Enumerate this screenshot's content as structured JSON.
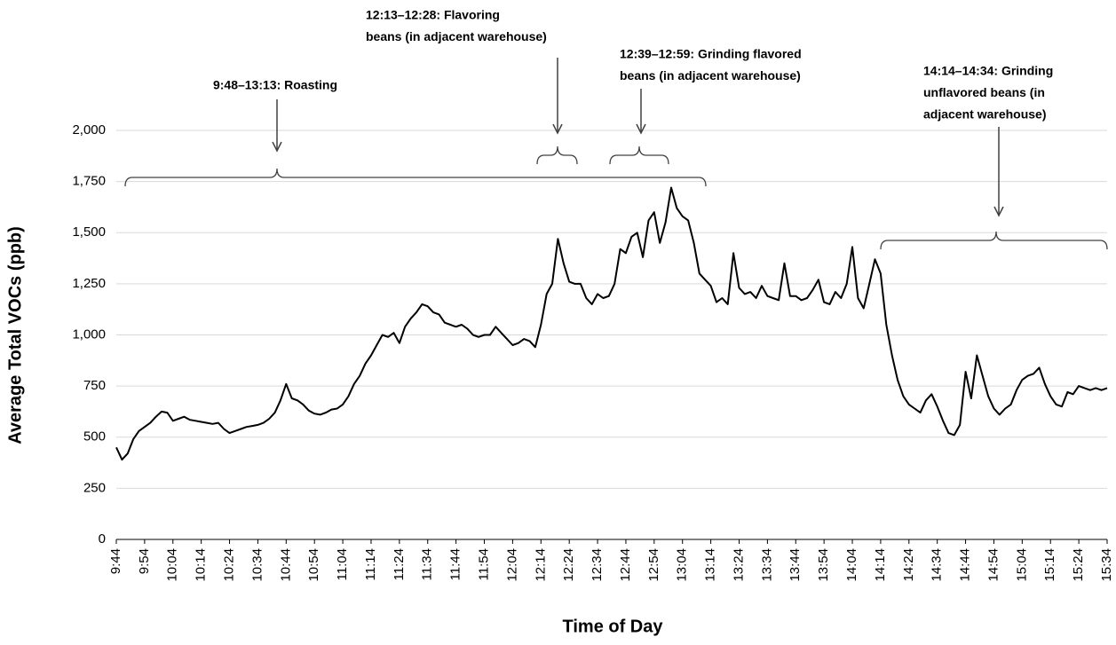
{
  "chart_data": {
    "type": "line",
    "y_label": "Average Total VOCs (ppb)",
    "x_label": "Time of Day",
    "annotations": [
      {
        "lines": [
          "9:48–13:13: Roasting"
        ]
      },
      {
        "lines": [
          "12:13–12:28:  Flavoring",
          "beans (in adjacent warehouse)"
        ]
      },
      {
        "lines": [
          "12:39–12:59:  Grinding flavored",
          "beans (in adjacent warehouse)"
        ]
      },
      {
        "lines": [
          "14:14–14:34:  Grinding",
          "unflavored beans (in",
          "adjacent warehouse)"
        ]
      }
    ],
    "color": "#000000",
    "grid": true,
    "ylim": [
      0,
      2000
    ],
    "yticks": [
      0,
      250,
      500,
      750,
      {
        "value": 1000,
        "label": "1,000"
      },
      {
        "value": 1250,
        "label": "1,250"
      },
      {
        "value": 1500,
        "label": "1,500"
      },
      {
        "value": 1750,
        "label": "1,750"
      },
      {
        "value": 2000,
        "label": "2,000"
      }
    ],
    "categories": [
      "9:44",
      null,
      null,
      null,
      null,
      "9:54",
      null,
      null,
      null,
      null,
      "10:04",
      null,
      null,
      null,
      null,
      "10:14",
      null,
      null,
      null,
      null,
      "10:24",
      null,
      null,
      null,
      null,
      "10:34",
      null,
      null,
      null,
      null,
      "10:44",
      null,
      null,
      null,
      null,
      "10:54",
      null,
      null,
      null,
      null,
      "11:04",
      null,
      null,
      null,
      null,
      "11:14",
      null,
      null,
      null,
      null,
      "11:24",
      null,
      null,
      null,
      null,
      "11:34",
      null,
      null,
      null,
      null,
      "11:44",
      null,
      null,
      null,
      null,
      "11:54",
      null,
      null,
      null,
      null,
      "12:04",
      null,
      null,
      null,
      null,
      "12:14",
      null,
      null,
      null,
      null,
      "12:24",
      null,
      null,
      null,
      null,
      "12:34",
      null,
      null,
      null,
      null,
      "12:44",
      null,
      null,
      null,
      null,
      "12:54",
      null,
      null,
      null,
      null,
      "13:04",
      null,
      null,
      null,
      null,
      "13:14",
      null,
      null,
      null,
      null,
      "13:24",
      null,
      null,
      null,
      null,
      "13:34",
      null,
      null,
      null,
      null,
      "13:44",
      null,
      null,
      null,
      null,
      "13:54",
      null,
      null,
      null,
      null,
      "14:04",
      null,
      null,
      null,
      null,
      "14:14",
      null,
      null,
      null,
      null,
      "14:24",
      null,
      null,
      null,
      null,
      "14:34",
      null,
      null,
      null,
      null,
      "14:44",
      null,
      null,
      null,
      null,
      "14:54",
      null,
      null,
      null,
      null,
      "15:04",
      null,
      null,
      null,
      null,
      "15:14",
      null,
      null,
      null,
      null,
      "15:24",
      null,
      null,
      null,
      null,
      "15:34"
    ],
    "values": [
      450,
      390,
      420,
      490,
      530,
      550,
      570,
      600,
      625,
      620,
      580,
      590,
      600,
      585,
      580,
      575,
      570,
      565,
      570,
      540,
      520,
      530,
      540,
      550,
      555,
      560,
      570,
      590,
      620,
      680,
      760,
      690,
      680,
      660,
      630,
      615,
      610,
      620,
      635,
      640,
      660,
      700,
      760,
      800,
      860,
      900,
      950,
      1000,
      990,
      1010,
      960,
      1040,
      1080,
      1110,
      1150,
      1140,
      1110,
      1100,
      1060,
      1050,
      1040,
      1050,
      1030,
      1000,
      990,
      1000,
      1000,
      1040,
      1010,
      980,
      950,
      960,
      980,
      970,
      940,
      1050,
      1200,
      1250,
      1470,
      1350,
      1260,
      1250,
      1250,
      1180,
      1150,
      1200,
      1180,
      1190,
      1250,
      1420,
      1400,
      1480,
      1500,
      1380,
      1560,
      1600,
      1450,
      1550,
      1720,
      1620,
      1580,
      1560,
      1450,
      1300,
      1270,
      1240,
      1160,
      1180,
      1150,
      1400,
      1230,
      1200,
      1210,
      1180,
      1240,
      1190,
      1180,
      1170,
      1350,
      1190,
      1190,
      1170,
      1180,
      1220,
      1270,
      1160,
      1150,
      1210,
      1180,
      1250,
      1430,
      1180,
      1130,
      1250,
      1370,
      1300,
      1050,
      900,
      780,
      700,
      660,
      640,
      620,
      680,
      710,
      650,
      580,
      520,
      510,
      560,
      820,
      690,
      900,
      800,
      700,
      640,
      610,
      640,
      660,
      730,
      780,
      800,
      810,
      840,
      760,
      700,
      660,
      650,
      720,
      710,
      750,
      740,
      730,
      740,
      730,
      740
    ]
  }
}
